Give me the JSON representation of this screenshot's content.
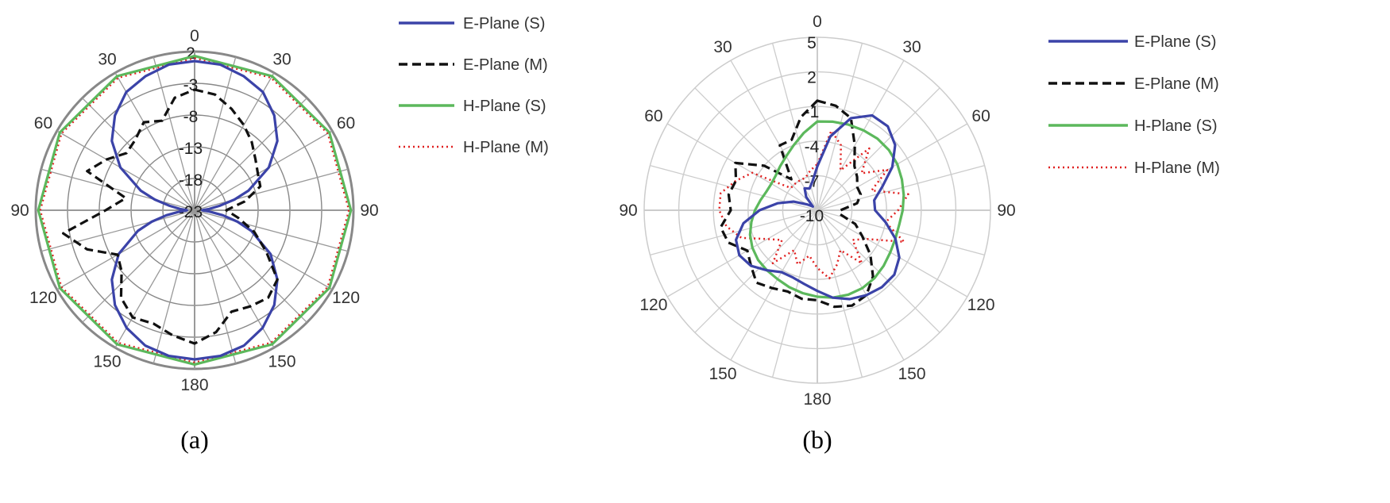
{
  "chart_data": [
    {
      "type": "polar-line",
      "caption": "(a)",
      "angle_ticks": [
        "0",
        "30",
        "60",
        "90",
        "120",
        "150",
        "180",
        "150",
        "120",
        "90",
        "60",
        "30"
      ],
      "radial_ticks": [
        2,
        -3,
        -8,
        -13,
        -18,
        -23
      ],
      "rlim": [
        -23,
        2
      ],
      "grid": true,
      "legend_position": "right",
      "series": [
        {
          "name": "E-Plane (S)",
          "color": "#3b43a8",
          "style": "solid",
          "angles": [
            0,
            10,
            20,
            30,
            40,
            50,
            60,
            70,
            75,
            80,
            85,
            88,
            90,
            92,
            95,
            100,
            105,
            110,
            120,
            130,
            140,
            150,
            160,
            170,
            180,
            190,
            200,
            210,
            220,
            230,
            240,
            250,
            255,
            260,
            265,
            268,
            270,
            272,
            275,
            280,
            285,
            290,
            300,
            310,
            320,
            330,
            340,
            350,
            360
          ],
          "values": [
            0.5,
            0.3,
            -0.5,
            -1.5,
            -3.5,
            -6,
            -9.5,
            -14,
            -16.5,
            -19,
            -20.7,
            -21.6,
            -21.8,
            -21.6,
            -20.7,
            -18.5,
            -16,
            -13.5,
            -9.2,
            -6,
            -3.5,
            -1.6,
            -0.3,
            0.3,
            0.5,
            0.3,
            -0.3,
            -1.6,
            -3.5,
            -6,
            -9.2,
            -13.5,
            -16,
            -18.5,
            -20.7,
            -21.6,
            -21.8,
            -21.6,
            -20.7,
            -19,
            -16.5,
            -14,
            -9.5,
            -6,
            -3.5,
            -1.5,
            -0.5,
            0.3,
            0.5
          ]
        },
        {
          "name": "E-Plane (M)",
          "color": "#111111",
          "style": "dashed",
          "angles": [
            0,
            10,
            20,
            30,
            40,
            50,
            60,
            70,
            80,
            90,
            100,
            110,
            120,
            130,
            140,
            150,
            160,
            170,
            180,
            190,
            200,
            210,
            220,
            230,
            240,
            250,
            260,
            270,
            280,
            290,
            300,
            310,
            320,
            330,
            340,
            350,
            360
          ],
          "values": [
            -4,
            -4.5,
            -6,
            -7.5,
            -9,
            -10.5,
            -11.5,
            -12,
            -15,
            -18,
            -16,
            -13,
            -10,
            -6,
            -5,
            -5.5,
            -6,
            -3.5,
            -2,
            -3,
            -4,
            -3.5,
            -5,
            -8,
            -9,
            -5,
            -2,
            -9,
            -12,
            -5,
            -7,
            -9,
            -8.5,
            -7,
            -8,
            -5,
            -4
          ]
        },
        {
          "name": "H-Plane (S)",
          "color": "#5cb85c",
          "style": "solid",
          "angles": [
            0,
            30,
            60,
            90,
            120,
            150,
            180,
            210,
            240,
            270,
            300,
            330,
            360
          ],
          "values": [
            1.3,
            1.4,
            1.5,
            1.6,
            1.5,
            1.4,
            1.3,
            1.4,
            1.5,
            1.6,
            1.5,
            1.4,
            1.3
          ]
        },
        {
          "name": "H-Plane (M)",
          "color": "#e02020",
          "style": "dotted",
          "angles": [
            0,
            30,
            60,
            90,
            120,
            150,
            180,
            210,
            240,
            270,
            300,
            330,
            360
          ],
          "values": [
            1.0,
            1.1,
            1.2,
            1.3,
            1.2,
            1.1,
            1.0,
            1.1,
            1.2,
            1.3,
            1.2,
            1.1,
            1.0
          ]
        }
      ]
    },
    {
      "type": "polar-line",
      "caption": "(b)",
      "angle_ticks": [
        "0",
        "30",
        "60",
        "90",
        "120",
        "150",
        "180",
        "150",
        "120",
        "90",
        "60",
        "30"
      ],
      "radial_ticks": [
        5,
        2,
        -1,
        -4,
        -7,
        -10
      ],
      "rlim": [
        -10,
        5
      ],
      "grid": true,
      "legend_position": "right",
      "series": [
        {
          "name": "E-Plane (S)",
          "color": "#3b43a8",
          "style": "solid",
          "angles": [
            0,
            10,
            20,
            30,
            40,
            50,
            60,
            70,
            80,
            90,
            100,
            110,
            120,
            130,
            140,
            150,
            160,
            170,
            180,
            190,
            200,
            210,
            220,
            230,
            240,
            250,
            260,
            270,
            280,
            290,
            300,
            310,
            320,
            330,
            340,
            350,
            360
          ],
          "values": [
            -6.2,
            -3.5,
            -1.5,
            -0.5,
            -0.5,
            -1.2,
            -2.5,
            -4,
            -5,
            -5,
            -4,
            -2.8,
            -1.8,
            -1.3,
            -1.3,
            -1.5,
            -1.8,
            -2.3,
            -3,
            -3.5,
            -3.8,
            -3.8,
            -3.2,
            -2.5,
            -2.2,
            -2.5,
            -3.5,
            -5,
            -6.5,
            -7.8,
            -9,
            -9.5,
            -8.5,
            -7.8,
            -8,
            -7.5,
            -6.2
          ]
        },
        {
          "name": "E-Plane (M)",
          "color": "#111111",
          "style": "dashed",
          "angles": [
            0,
            10,
            20,
            30,
            40,
            50,
            60,
            70,
            80,
            90,
            100,
            110,
            120,
            130,
            140,
            150,
            160,
            170,
            180,
            190,
            200,
            210,
            220,
            230,
            240,
            250,
            260,
            270,
            280,
            290,
            300,
            310,
            320,
            330,
            340,
            350,
            360
          ],
          "values": [
            -0.5,
            -0.8,
            -1.5,
            -3.5,
            -5,
            -5.5,
            -6,
            -6,
            -6.5,
            -8,
            -8,
            -6.5,
            -5.5,
            -4,
            -2.5,
            -1.5,
            -1.2,
            -1.5,
            -2.2,
            -2.2,
            -2.5,
            -2.2,
            -1.8,
            -2.5,
            -3,
            -1.8,
            -1.5,
            -2.5,
            -2.2,
            -2.5,
            -1.8,
            -4,
            -6.5,
            -3.5,
            -3.5,
            -1.8,
            -0.5
          ]
        },
        {
          "name": "H-Plane (S)",
          "color": "#5cb85c",
          "style": "solid",
          "angles": [
            0,
            10,
            20,
            30,
            40,
            50,
            60,
            70,
            80,
            90,
            100,
            110,
            120,
            130,
            140,
            150,
            160,
            170,
            180,
            190,
            200,
            210,
            220,
            230,
            240,
            250,
            260,
            270,
            280,
            290,
            300,
            310,
            320,
            330,
            340,
            350,
            360
          ],
          "values": [
            -2.3,
            -2.2,
            -2.1,
            -2,
            -1.9,
            -1.9,
            -2,
            -2.2,
            -2.4,
            -2.6,
            -2.8,
            -2.8,
            -2.7,
            -2.5,
            -2.3,
            -2.2,
            -2.2,
            -2.3,
            -2.5,
            -2.7,
            -2.9,
            -3.1,
            -3.2,
            -3.3,
            -3.5,
            -3.8,
            -4.2,
            -4.6,
            -5,
            -5.3,
            -5.4,
            -5.3,
            -5,
            -4.6,
            -4,
            -3.2,
            -2.3
          ]
        },
        {
          "name": "H-Plane (M)",
          "color": "#e02020",
          "style": "dotted",
          "angles": [
            0,
            10,
            20,
            30,
            40,
            50,
            60,
            70,
            80,
            90,
            100,
            110,
            120,
            130,
            140,
            150,
            160,
            170,
            180,
            190,
            200,
            210,
            220,
            230,
            240,
            250,
            260,
            270,
            280,
            290,
            300,
            310,
            320,
            330,
            340,
            350,
            360
          ],
          "values": [
            -6,
            -3,
            -4,
            -6,
            -3,
            -5,
            -3,
            -5,
            -2,
            -3,
            -4,
            -2,
            -5,
            -6,
            -4,
            -6,
            -5,
            -4,
            -5,
            -6,
            -5,
            -6,
            -4,
            -6,
            -5,
            -3,
            -2,
            -1.5,
            -1.5,
            -2.5,
            -3.5,
            -7,
            -7,
            -7,
            -7,
            -6.5,
            -6
          ]
        }
      ]
    }
  ]
}
